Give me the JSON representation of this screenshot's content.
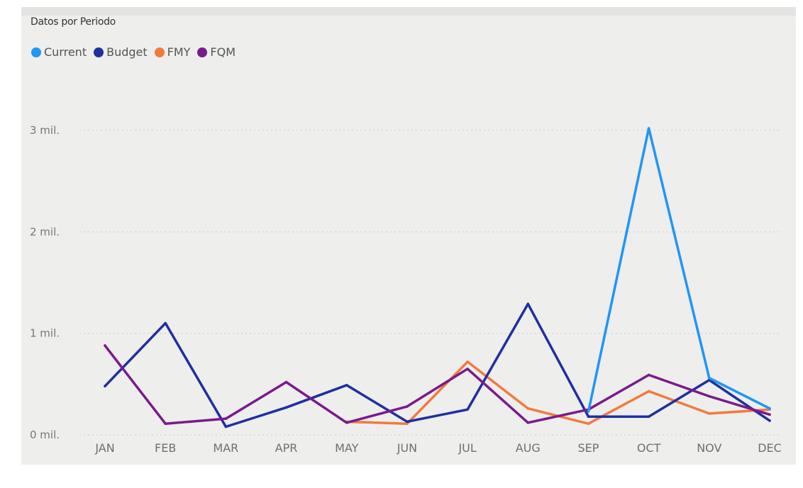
{
  "chart_data": {
    "type": "line",
    "title": "Datos por Periodo",
    "xlabel": "",
    "ylabel": "",
    "categories": [
      "JAN",
      "FEB",
      "MAR",
      "APR",
      "MAY",
      "JUN",
      "JUL",
      "AUG",
      "SEP",
      "OCT",
      "NOV",
      "DEC"
    ],
    "ylim": [
      0,
      3000000
    ],
    "yticks": [
      {
        "value": 0,
        "label": "0 mil."
      },
      {
        "value": 1000000,
        "label": "1 mil."
      },
      {
        "value": 2000000,
        "label": "2 mil."
      },
      {
        "value": 3000000,
        "label": "3 mil."
      }
    ],
    "grid": true,
    "legend_position": "top-left",
    "series": [
      {
        "name": "Current",
        "color": "#2196f3",
        "values": [
          null,
          null,
          null,
          null,
          null,
          null,
          null,
          null,
          230000,
          3020000,
          560000,
          260000
        ]
      },
      {
        "name": "Budget",
        "color": "#1f2fa0",
        "values": [
          480000,
          1100000,
          80000,
          270000,
          490000,
          130000,
          250000,
          1290000,
          180000,
          180000,
          540000,
          140000
        ]
      },
      {
        "name": "FMY",
        "color": "#f07b3f",
        "values": [
          null,
          null,
          null,
          null,
          130000,
          110000,
          720000,
          260000,
          110000,
          430000,
          210000,
          250000
        ]
      },
      {
        "name": "FQM",
        "color": "#7b1a8c",
        "values": [
          880000,
          110000,
          160000,
          520000,
          120000,
          280000,
          650000,
          120000,
          250000,
          590000,
          380000,
          200000
        ]
      }
    ]
  },
  "legend": {
    "items": [
      {
        "label": "Current",
        "color": "#2196f3"
      },
      {
        "label": "Budget",
        "color": "#1f2fa0"
      },
      {
        "label": "FMY",
        "color": "#f07b3f"
      },
      {
        "label": "FQM",
        "color": "#7b1a8c"
      }
    ]
  }
}
